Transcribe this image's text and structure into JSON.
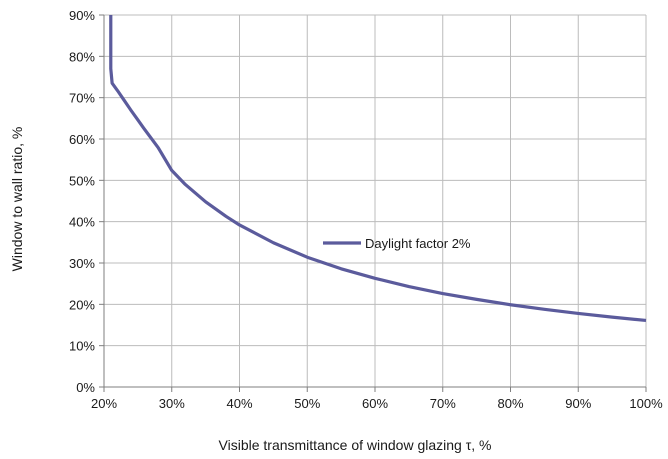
{
  "chart_data": {
    "type": "line",
    "title": "",
    "xlabel": "Visible transmittance of window glazing τ, %",
    "ylabel": "Window to wall ratio, %",
    "xlim": [
      20,
      100
    ],
    "ylim": [
      0,
      90
    ],
    "x_ticks": [
      20,
      30,
      40,
      50,
      60,
      70,
      80,
      90,
      100
    ],
    "y_ticks": [
      0,
      10,
      20,
      30,
      40,
      50,
      60,
      70,
      80,
      90
    ],
    "x_tick_labels": [
      "20%",
      "30%",
      "40%",
      "50%",
      "60%",
      "70%",
      "80%",
      "90%",
      "100%"
    ],
    "y_tick_labels": [
      "0%",
      "10%",
      "20%",
      "30%",
      "40%",
      "50%",
      "60%",
      "70%",
      "80%",
      "90%"
    ],
    "grid": true,
    "legend_position": "center-right",
    "series": [
      {
        "name": "Daylight factor 2%",
        "color": "#5b5b9c",
        "x": [
          21.0,
          21.0,
          21.2,
          22,
          23,
          24,
          25,
          26,
          28,
          30,
          32,
          35,
          38,
          40,
          45,
          50,
          55,
          60,
          65,
          70,
          75,
          80,
          85,
          90,
          95,
          100
        ],
        "y": [
          90,
          77,
          73.5,
          71.7,
          69.3,
          66.9,
          64.6,
          62.3,
          57.9,
          52.4,
          49.0,
          44.8,
          41.3,
          39.2,
          34.9,
          31.4,
          28.6,
          26.3,
          24.3,
          22.6,
          21.2,
          19.9,
          18.8,
          17.8,
          16.9,
          16.1
        ]
      }
    ]
  }
}
